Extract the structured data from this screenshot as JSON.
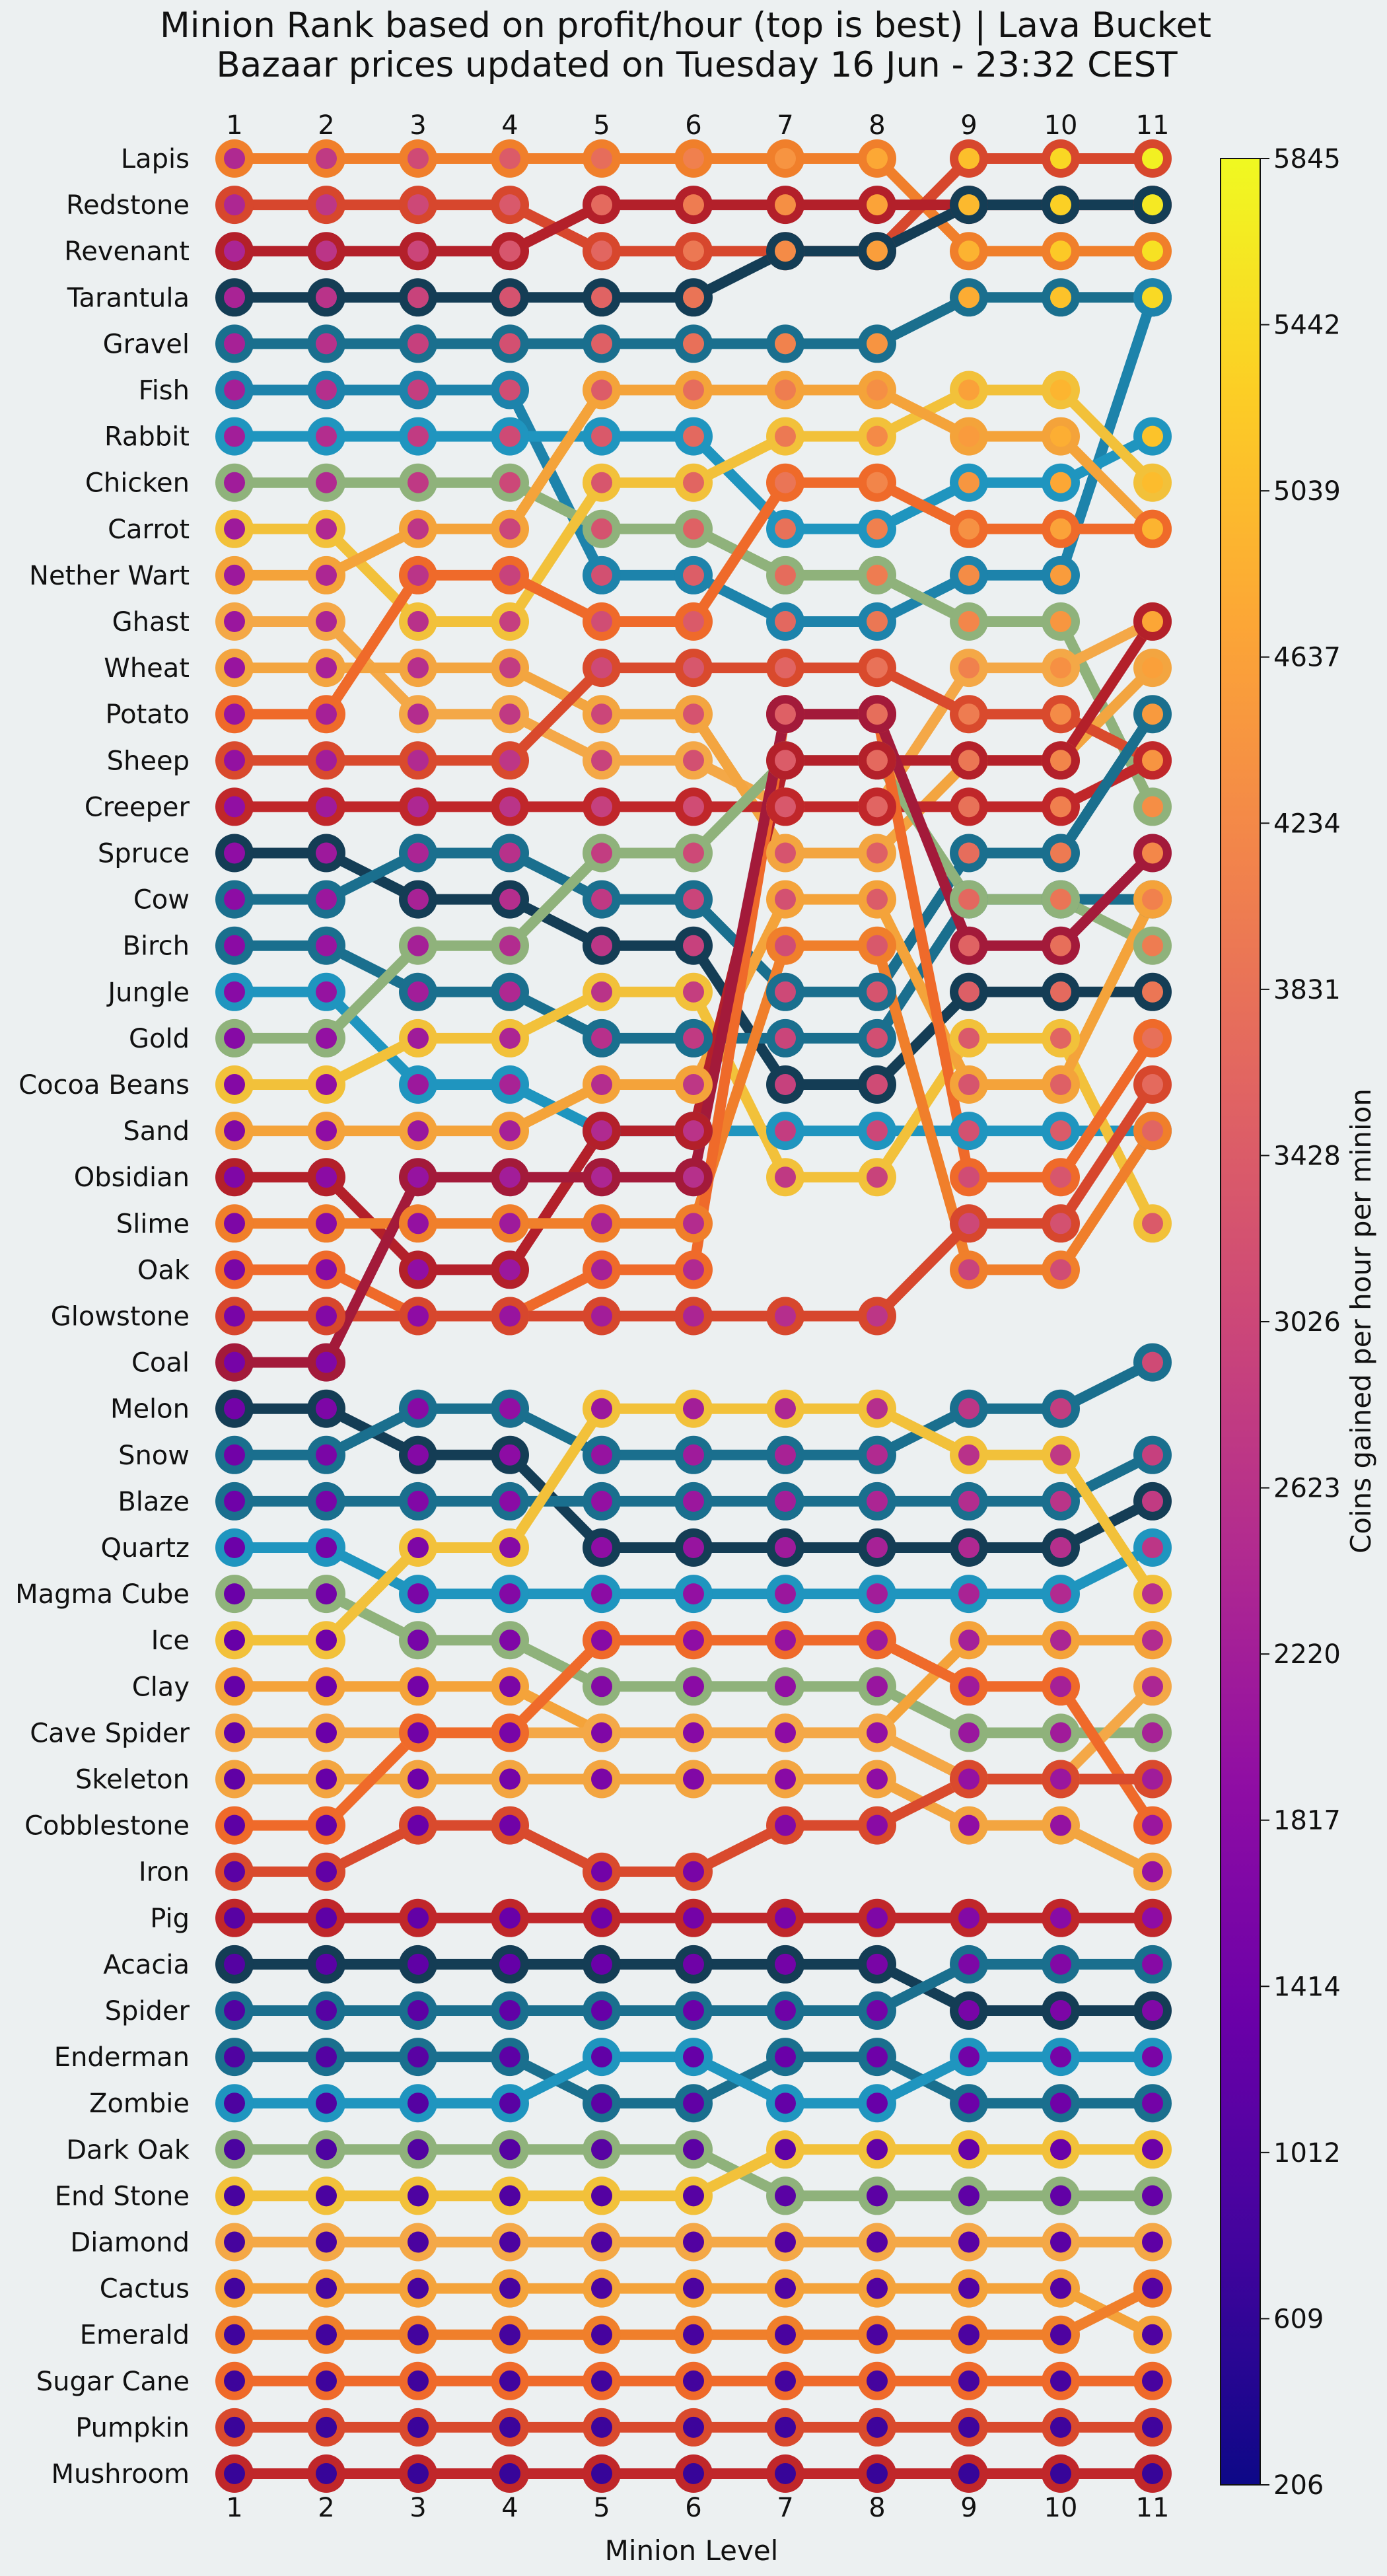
{
  "chart_data": {
    "type": "bump",
    "title_lines": [
      "Minion Rank based on profit/hour (top is best) | Lava Bucket",
      "Bazaar prices updated on Tuesday 16 Jun - 23:32 CEST"
    ],
    "xlabel": "Minion Level",
    "colorbar_label": "Coins gained per hour per minion",
    "colorbar_ticks": [
      "5845",
      "5442",
      "5039",
      "4637",
      "4234",
      "3831",
      "3428",
      "3026",
      "2623",
      "2220",
      "1817",
      "1414",
      "1012",
      "609",
      "206"
    ],
    "colorbar_range": [
      206,
      5845
    ],
    "levels": [
      1,
      2,
      3,
      4,
      5,
      6,
      7,
      8,
      9,
      10,
      11
    ],
    "rows": [
      "Lapis",
      "Redstone",
      "Revenant",
      "Tarantula",
      "Gravel",
      "Fish",
      "Rabbit",
      "Chicken",
      "Carrot",
      "Nether Wart",
      "Ghast",
      "Wheat",
      "Potato",
      "Sheep",
      "Creeper",
      "Spruce",
      "Cow",
      "Birch",
      "Jungle",
      "Gold",
      "Cocoa Beans",
      "Sand",
      "Obsidian",
      "Slime",
      "Oak",
      "Glowstone",
      "Coal",
      "Melon",
      "Snow",
      "Blaze",
      "Quartz",
      "Magma Cube",
      "Ice",
      "Clay",
      "Cave Spider",
      "Skeleton",
      "Cobblestone",
      "Iron",
      "Pig",
      "Acacia",
      "Spider",
      "Enderman",
      "Zombie",
      "Dark Oak",
      "End Stone",
      "Diamond",
      "Cactus",
      "Emerald",
      "Sugar Cane",
      "Pumpkin",
      "Mushroom"
    ],
    "series": [
      {
        "name": "Lapis",
        "color": "#f07f2b",
        "ranks": [
          1,
          1,
          1,
          1,
          1,
          1,
          1,
          1,
          3,
          3,
          3
        ]
      },
      {
        "name": "Redstone",
        "color": "#d7472d",
        "ranks": [
          2,
          2,
          2,
          2,
          3,
          3,
          3,
          3,
          1,
          1,
          1
        ]
      },
      {
        "name": "Revenant",
        "color": "#b3202a",
        "ranks": [
          3,
          3,
          3,
          3,
          2,
          2,
          2,
          2,
          2,
          2,
          2
        ]
      },
      {
        "name": "Tarantula",
        "color": "#143d55",
        "ranks": [
          4,
          4,
          4,
          4,
          4,
          4,
          3,
          3,
          2,
          2,
          2
        ]
      },
      {
        "name": "Gravel",
        "color": "#1a6f8e",
        "ranks": [
          5,
          5,
          5,
          5,
          5,
          5,
          5,
          5,
          4,
          4,
          4
        ]
      },
      {
        "name": "Fish",
        "color": "#1d83ab",
        "ranks": [
          6,
          6,
          6,
          6,
          10,
          10,
          11,
          11,
          10,
          10,
          4
        ]
      },
      {
        "name": "Rabbit",
        "color": "#1f95bf",
        "ranks": [
          7,
          7,
          7,
          7,
          7,
          7,
          9,
          9,
          8,
          8,
          7
        ]
      },
      {
        "name": "Chicken",
        "color": "#8fb27b",
        "ranks": [
          8,
          8,
          8,
          8,
          9,
          9,
          10,
          10,
          11,
          11,
          15
        ]
      },
      {
        "name": "Carrot",
        "color": "#f2c13a",
        "ranks": [
          9,
          9,
          11,
          11,
          8,
          8,
          7,
          7,
          6,
          6,
          8
        ]
      },
      {
        "name": "Nether Wart",
        "color": "#f4a33a",
        "ranks": [
          10,
          10,
          9,
          9,
          6,
          6,
          6,
          6,
          7,
          7,
          9
        ]
      },
      {
        "name": "Ghast",
        "color": "#f4a847",
        "ranks": [
          11,
          11,
          13,
          13,
          14,
          14,
          15,
          15,
          12,
          12,
          11
        ]
      },
      {
        "name": "Wheat",
        "color": "#f3a540",
        "ranks": [
          12,
          12,
          12,
          12,
          13,
          13,
          16,
          16,
          14,
          14,
          12
        ]
      },
      {
        "name": "Potato",
        "color": "#ef6a2a",
        "ranks": [
          13,
          13,
          10,
          10,
          11,
          11,
          8,
          8,
          9,
          9,
          9
        ]
      },
      {
        "name": "Sheep",
        "color": "#d94a2d",
        "ranks": [
          14,
          14,
          14,
          14,
          12,
          12,
          12,
          12,
          13,
          13,
          14
        ]
      },
      {
        "name": "Creeper",
        "color": "#c0272a",
        "ranks": [
          15,
          15,
          15,
          15,
          15,
          15,
          15,
          15,
          15,
          15,
          14
        ]
      },
      {
        "name": "Spruce",
        "color": "#143d55",
        "ranks": [
          16,
          16,
          17,
          17,
          18,
          18,
          21,
          21,
          19,
          19,
          19
        ]
      },
      {
        "name": "Cow",
        "color": "#1a6f8e",
        "ranks": [
          17,
          17,
          16,
          16,
          17,
          17,
          19,
          19,
          16,
          16,
          13
        ]
      },
      {
        "name": "Birch",
        "color": "#1a6f8e",
        "ranks": [
          18,
          18,
          19,
          19,
          20,
          20,
          20,
          20,
          17,
          17,
          17
        ]
      },
      {
        "name": "Jungle",
        "color": "#1f95bf",
        "ranks": [
          19,
          19,
          21,
          21,
          22,
          22,
          22,
          22,
          22,
          22,
          22
        ]
      },
      {
        "name": "Gold",
        "color": "#8fb27b",
        "ranks": [
          20,
          20,
          18,
          18,
          16,
          16,
          14,
          14,
          17,
          17,
          18
        ]
      },
      {
        "name": "Cocoa Beans",
        "color": "#f2c13a",
        "ranks": [
          21,
          21,
          20,
          20,
          19,
          19,
          23,
          23,
          20,
          20,
          24
        ]
      },
      {
        "name": "Sand",
        "color": "#f4a33a",
        "ranks": [
          22,
          22,
          22,
          22,
          21,
          21,
          17,
          17,
          21,
          21,
          17
        ]
      },
      {
        "name": "Obsidian",
        "color": "#b3202a",
        "ranks": [
          23,
          23,
          25,
          25,
          22,
          22,
          14,
          14,
          14,
          14,
          11
        ]
      },
      {
        "name": "Slime",
        "color": "#f07f2b",
        "ranks": [
          24,
          24,
          24,
          24,
          24,
          24,
          18,
          18,
          25,
          25,
          22
        ]
      },
      {
        "name": "Oak",
        "color": "#ef6a2a",
        "ranks": [
          25,
          25,
          26,
          26,
          25,
          25,
          13,
          13,
          23,
          23,
          20
        ]
      },
      {
        "name": "Glowstone",
        "color": "#d7472d",
        "ranks": [
          26,
          26,
          26,
          26,
          26,
          26,
          26,
          26,
          24,
          24,
          21
        ]
      },
      {
        "name": "Coal",
        "color": "#a31a3a",
        "ranks": [
          27,
          27,
          23,
          23,
          23,
          23,
          13,
          13,
          18,
          18,
          16
        ]
      },
      {
        "name": "Melon",
        "color": "#143d55",
        "ranks": [
          28,
          28,
          29,
          29,
          31,
          31,
          31,
          31,
          31,
          31,
          30
        ]
      },
      {
        "name": "Snow",
        "color": "#1a6f8e",
        "ranks": [
          29,
          29,
          28,
          28,
          29,
          29,
          29,
          29,
          28,
          28,
          27
        ]
      },
      {
        "name": "Blaze",
        "color": "#1a6f8e",
        "ranks": [
          30,
          30,
          30,
          30,
          30,
          30,
          30,
          30,
          30,
          30,
          29
        ]
      },
      {
        "name": "Quartz",
        "color": "#1f95bf",
        "ranks": [
          31,
          31,
          32,
          32,
          32,
          32,
          32,
          32,
          32,
          32,
          31
        ]
      },
      {
        "name": "Magma Cube",
        "color": "#8fb27b",
        "ranks": [
          32,
          32,
          33,
          33,
          34,
          34,
          34,
          34,
          35,
          35,
          35
        ]
      },
      {
        "name": "Ice",
        "color": "#f2c13a",
        "ranks": [
          33,
          33,
          31,
          31,
          28,
          28,
          28,
          28,
          29,
          29,
          32
        ]
      },
      {
        "name": "Clay",
        "color": "#f4a33a",
        "ranks": [
          34,
          34,
          34,
          34,
          35,
          35,
          35,
          35,
          33,
          33,
          33
        ]
      },
      {
        "name": "Cave Spider",
        "color": "#f4a847",
        "ranks": [
          35,
          35,
          35,
          35,
          35,
          35,
          35,
          35,
          36,
          36,
          34
        ]
      },
      {
        "name": "Skeleton",
        "color": "#f3a540",
        "ranks": [
          36,
          36,
          36,
          36,
          36,
          36,
          36,
          36,
          37,
          37,
          38
        ]
      },
      {
        "name": "Cobblestone",
        "color": "#ef6a2a",
        "ranks": [
          37,
          37,
          35,
          35,
          33,
          33,
          33,
          33,
          34,
          34,
          37
        ]
      },
      {
        "name": "Iron",
        "color": "#d94a2d",
        "ranks": [
          38,
          38,
          37,
          37,
          38,
          38,
          37,
          37,
          36,
          36,
          36
        ]
      },
      {
        "name": "Pig",
        "color": "#c0272a",
        "ranks": [
          39,
          39,
          39,
          39,
          39,
          39,
          39,
          39,
          39,
          39,
          39
        ]
      },
      {
        "name": "Acacia",
        "color": "#143d55",
        "ranks": [
          40,
          40,
          40,
          40,
          40,
          40,
          40,
          40,
          41,
          41,
          41
        ]
      },
      {
        "name": "Spider",
        "color": "#1a6f8e",
        "ranks": [
          41,
          41,
          41,
          41,
          41,
          41,
          41,
          41,
          40,
          40,
          40
        ]
      },
      {
        "name": "Enderman",
        "color": "#1a6f8e",
        "ranks": [
          42,
          42,
          42,
          42,
          43,
          43,
          42,
          42,
          43,
          43,
          43
        ]
      },
      {
        "name": "Zombie",
        "color": "#1f95bf",
        "ranks": [
          43,
          43,
          43,
          43,
          42,
          42,
          43,
          43,
          42,
          42,
          42
        ]
      },
      {
        "name": "Dark Oak",
        "color": "#8fb27b",
        "ranks": [
          44,
          44,
          44,
          44,
          44,
          44,
          45,
          45,
          45,
          45,
          45
        ]
      },
      {
        "name": "End Stone",
        "color": "#f2c13a",
        "ranks": [
          45,
          45,
          45,
          45,
          45,
          45,
          44,
          44,
          44,
          44,
          44
        ]
      },
      {
        "name": "Diamond",
        "color": "#f4a847",
        "ranks": [
          46,
          46,
          46,
          46,
          46,
          46,
          46,
          46,
          46,
          46,
          46
        ]
      },
      {
        "name": "Cactus",
        "color": "#f4a33a",
        "ranks": [
          47,
          47,
          47,
          47,
          47,
          47,
          47,
          47,
          47,
          47,
          48
        ]
      },
      {
        "name": "Emerald",
        "color": "#f07f2b",
        "ranks": [
          48,
          48,
          48,
          48,
          48,
          48,
          48,
          48,
          48,
          48,
          47
        ]
      },
      {
        "name": "Sugar Cane",
        "color": "#ef6a2a",
        "ranks": [
          49,
          49,
          49,
          49,
          49,
          49,
          49,
          49,
          49,
          49,
          49
        ]
      },
      {
        "name": "Pumpkin",
        "color": "#d94a2d",
        "ranks": [
          50,
          50,
          50,
          50,
          50,
          50,
          50,
          50,
          50,
          50,
          50
        ]
      },
      {
        "name": "Mushroom",
        "color": "#c0272a",
        "ranks": [
          51,
          51,
          51,
          51,
          51,
          51,
          51,
          51,
          51,
          51,
          51
        ]
      }
    ]
  }
}
